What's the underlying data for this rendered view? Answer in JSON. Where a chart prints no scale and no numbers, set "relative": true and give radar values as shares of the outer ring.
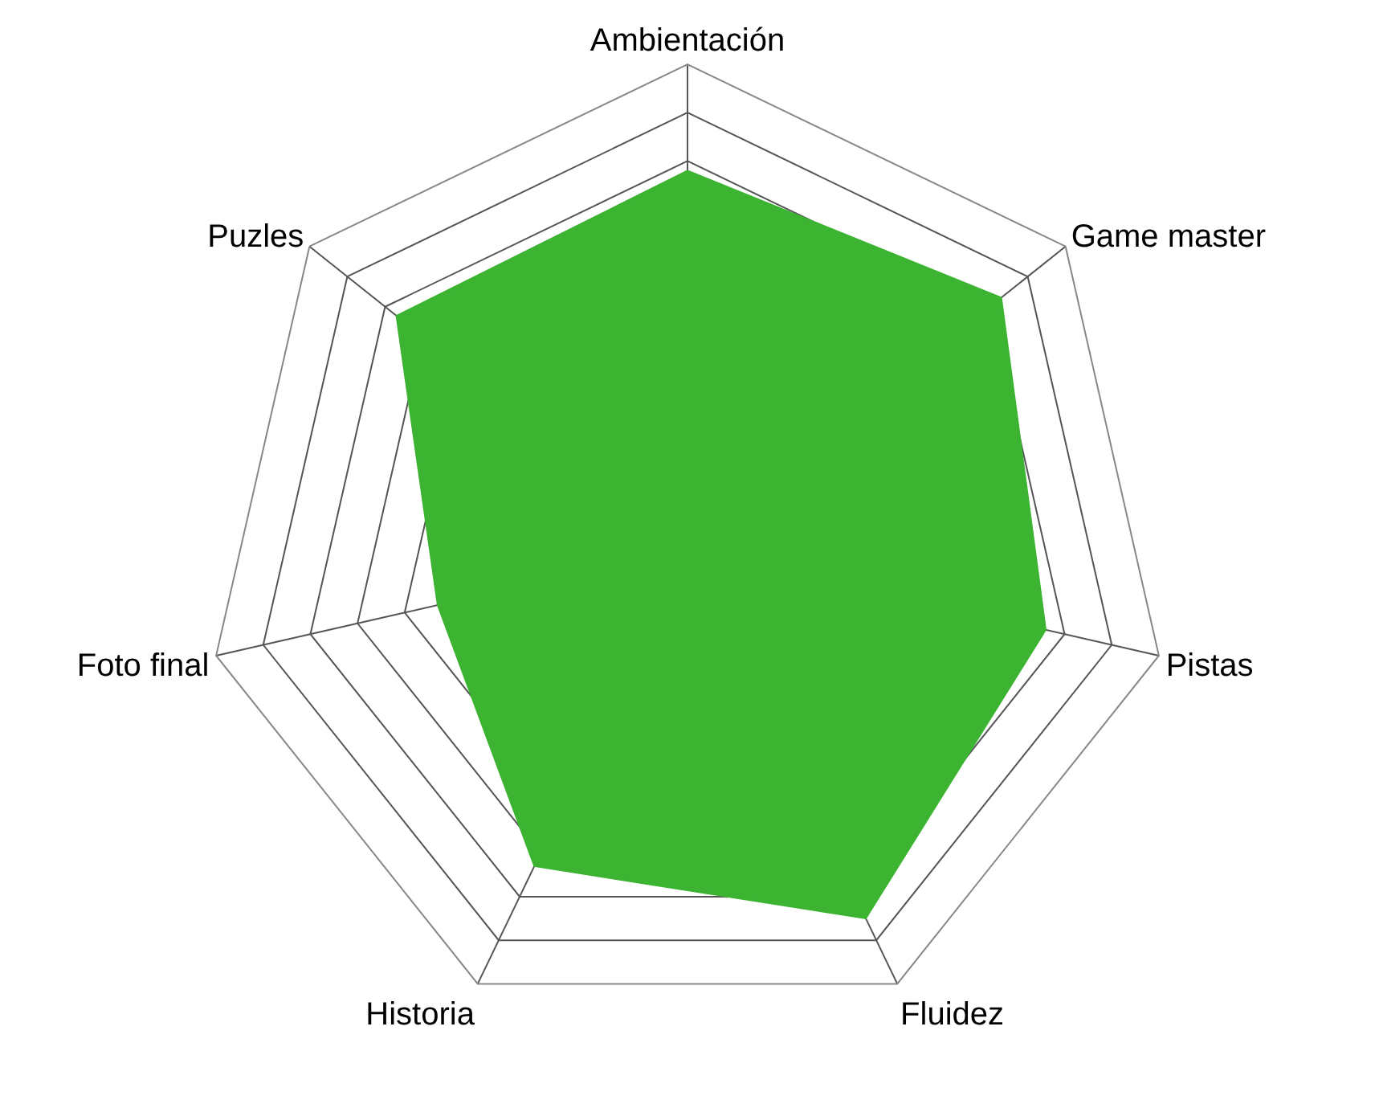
{
  "chart_data": {
    "type": "radar",
    "relative": true,
    "grid": true,
    "marker": "none",
    "categories": [
      "Ambientación",
      "Game master",
      "Pistas",
      "Fluidez",
      "Historia",
      "Foto final",
      "Puzles"
    ],
    "series": [
      {
        "color": "#3cb432",
        "values": [
          0.78,
          0.83,
          0.76,
          0.85,
          0.73,
          0.53,
          0.77
        ]
      }
    ]
  }
}
